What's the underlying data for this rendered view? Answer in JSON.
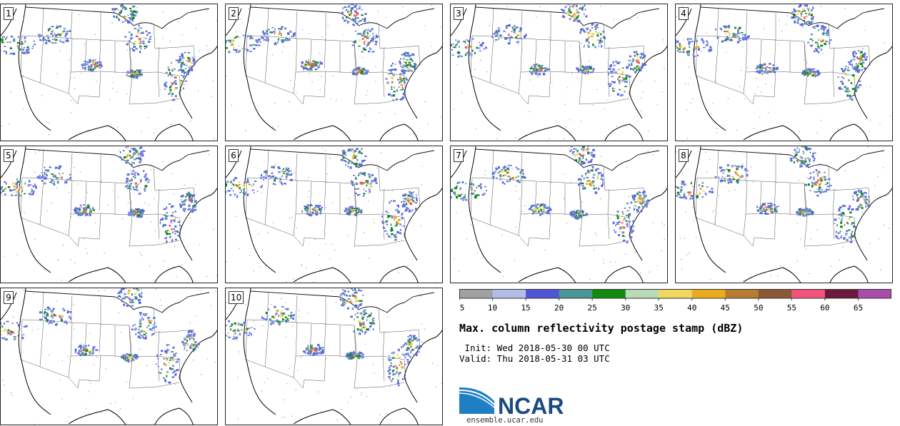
{
  "stamps": [
    {
      "label": "1"
    },
    {
      "label": "2"
    },
    {
      "label": "3"
    },
    {
      "label": "4"
    },
    {
      "label": "5"
    },
    {
      "label": "6"
    },
    {
      "label": "7"
    },
    {
      "label": "8"
    },
    {
      "label": "9"
    },
    {
      "label": "10"
    }
  ],
  "colorbar": {
    "ticks": [
      "5",
      "10",
      "15",
      "20",
      "25",
      "30",
      "35",
      "40",
      "45",
      "50",
      "55",
      "60",
      "65"
    ],
    "colors": [
      "#a1a1a1",
      "#b2bde8",
      "#5055d6",
      "#4c9597",
      "#108a0f",
      "#b9dbb9",
      "#f0d75e",
      "#eeaa1e",
      "#b67d32",
      "#8b5737",
      "#f3527c",
      "#6a1a3d",
      "#aa4caa"
    ]
  },
  "title": "Max. column reflectivity postage stamp (dBZ)",
  "init": " Init: Wed 2018-05-30 00 UTC",
  "valid": "Valid: Thu 2018-05-31 03 UTC",
  "logo": {
    "text": "NCAR",
    "url": "ensemble.ucar.edu",
    "colors": {
      "primary": "#1b4b7e",
      "arc": "#1f7fc2"
    }
  },
  "map_palette": [
    "#5a6bd8",
    "#7d8fe2",
    "#108a0f",
    "#4c9597",
    "#f0d75e",
    "#eeaa1e",
    "#b67d32",
    "#f3527c"
  ]
}
